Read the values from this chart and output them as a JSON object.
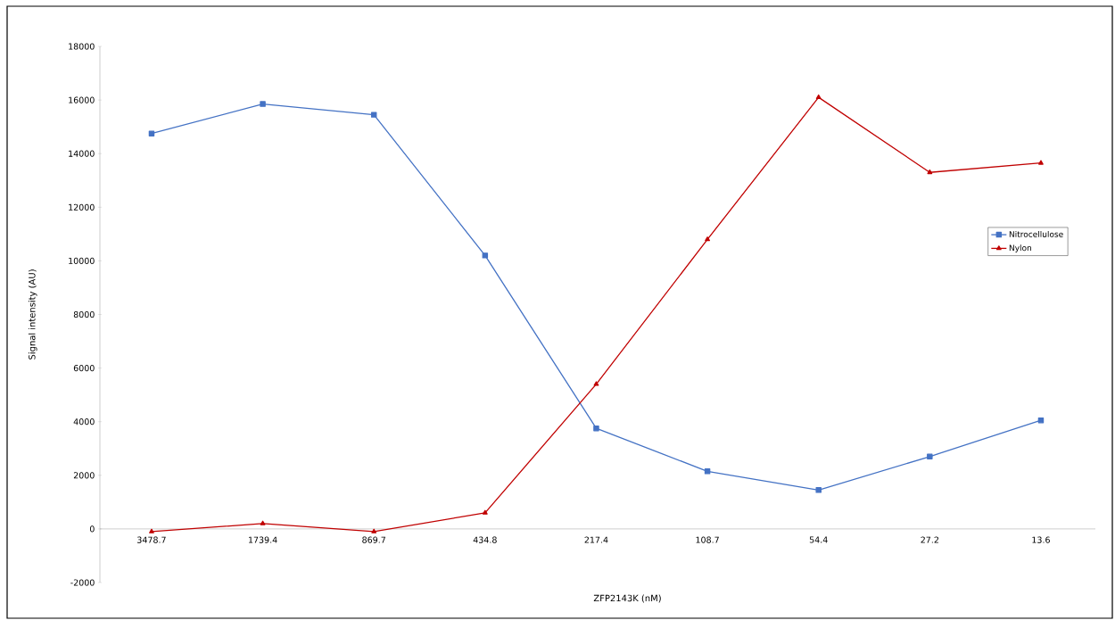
{
  "chart_data": {
    "type": "line",
    "xlabel": "ZFP2143K (nM)",
    "ylabel": "Signal intensity (AU)",
    "categories": [
      "3478.7",
      "1739.4",
      "869.7",
      "434.8",
      "217.4",
      "108.7",
      "54.4",
      "27.2",
      "13.6"
    ],
    "series": [
      {
        "name": "Nitrocellulose",
        "color": "#4472c4",
        "marker": "square",
        "values": [
          14750,
          15850,
          15450,
          10200,
          3750,
          2150,
          1450,
          2700,
          4050
        ]
      },
      {
        "name": "Nylon",
        "color": "#c00000",
        "marker": "triangle",
        "values": [
          -100,
          200,
          -100,
          600,
          5400,
          10800,
          16100,
          13300,
          13650
        ]
      }
    ],
    "ylim": [
      -2000,
      18000
    ],
    "yticks": [
      -2000,
      0,
      2000,
      4000,
      6000,
      8000,
      10000,
      12000,
      14000,
      16000,
      18000
    ],
    "legend": "right",
    "line_style": "solid"
  }
}
